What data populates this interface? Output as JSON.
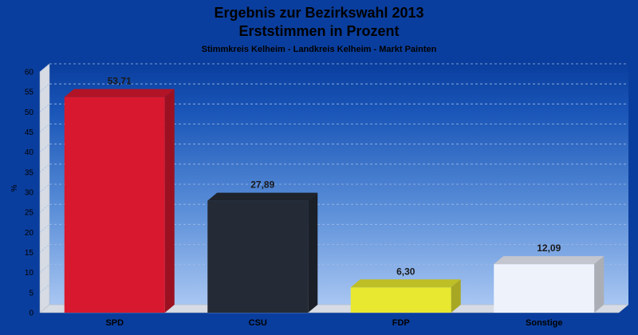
{
  "chart_data": {
    "type": "bar",
    "title": "Ergebnis zur Bezirkswahl 2013",
    "subtitle": "Erststimmen in Prozent",
    "caption": "Stimmkreis Kelheim - Landkreis Kelheim - Markt Painten",
    "ylabel": "%",
    "ylim": [
      0,
      60
    ],
    "yticks": [
      0,
      5,
      10,
      15,
      20,
      25,
      30,
      35,
      40,
      45,
      50,
      55,
      60
    ],
    "grid": true,
    "categories": [
      "SPD",
      "CSU",
      "FDP",
      "Sonstige"
    ],
    "values": [
      53.71,
      27.89,
      6.3,
      12.09
    ],
    "value_labels": [
      "53,71",
      "27,89",
      "6,30",
      "12,09"
    ],
    "colors": [
      "#d8182e",
      "#252b36",
      "#e8e830",
      "#eef2fb"
    ]
  }
}
